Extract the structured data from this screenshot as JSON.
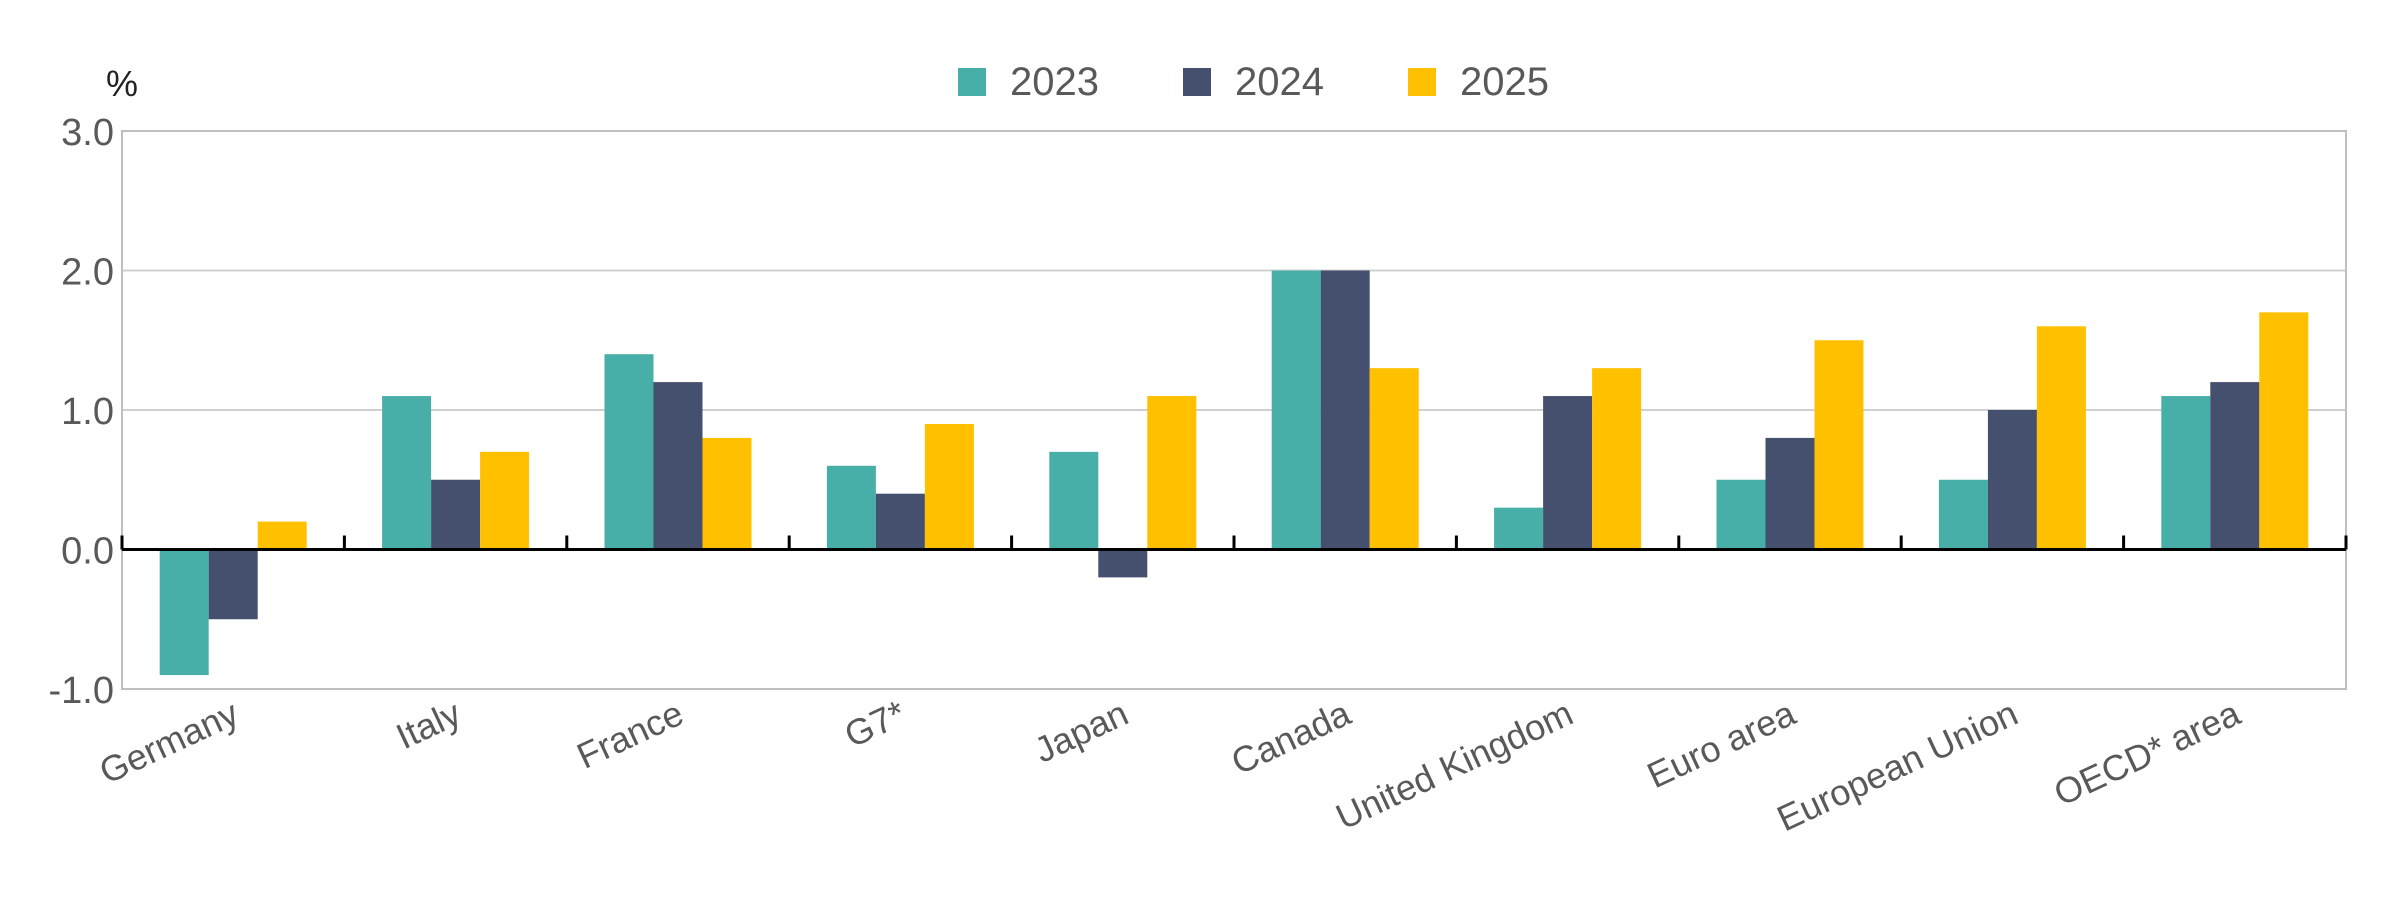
{
  "chart_data": {
    "type": "bar",
    "ylabel": "%",
    "ylim": [
      -1.0,
      3.0
    ],
    "yticks": [
      "3.0",
      "2.0",
      "1.0",
      "0.0",
      "-1.0"
    ],
    "ytick_values": [
      3,
      2,
      1,
      0,
      -1
    ],
    "grid": true,
    "legend_position": "top-center",
    "categories": [
      "Germany",
      "Italy",
      "France",
      "G7*",
      "Japan",
      "Canada",
      "United Kingdom",
      "Euro area",
      "European Union",
      "OECD* area"
    ],
    "series": [
      {
        "name": "2023",
        "color": "#47AFA7",
        "values": [
          -0.9,
          1.1,
          1.4,
          0.6,
          0.7,
          2.0,
          0.3,
          0.5,
          0.5,
          1.1
        ]
      },
      {
        "name": "2024",
        "color": "#454F6E",
        "values": [
          -0.5,
          0.5,
          1.2,
          0.4,
          -0.2,
          2.0,
          1.1,
          0.8,
          1.0,
          1.2
        ]
      },
      {
        "name": "2025",
        "color": "#FFC000",
        "values": [
          0.2,
          0.7,
          0.8,
          0.9,
          1.1,
          1.3,
          1.3,
          1.5,
          1.6,
          1.7
        ]
      }
    ]
  }
}
